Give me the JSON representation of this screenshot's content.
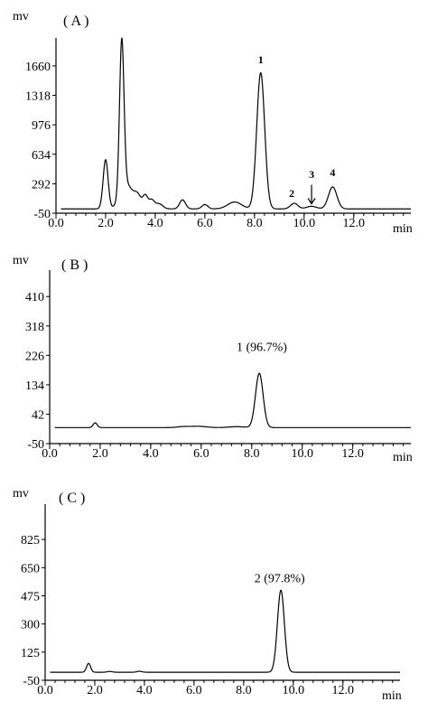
{
  "chart_data": [
    {
      "type": "line",
      "panel_label": "( A )",
      "ylabel": "mv",
      "xlabel": "min",
      "xlim": [
        0,
        14.3
      ],
      "ylim": [
        -50,
        1900
      ],
      "xticks": [
        "0.0",
        "2.0",
        "4.0",
        "6.0",
        "8.0",
        "10.0",
        "12.0"
      ],
      "yticks": [
        "-50",
        "292",
        "634",
        "976",
        "1318",
        "1660"
      ],
      "baseline": 0,
      "peaks": [
        {
          "rt": 2.0,
          "height": 570,
          "width": 0.1
        },
        {
          "rt": 2.65,
          "height": 1780,
          "width": 0.09
        },
        {
          "rt": 2.85,
          "height": 280,
          "width": 0.25
        },
        {
          "rt": 3.3,
          "height": 130,
          "width": 0.14
        },
        {
          "rt": 3.6,
          "height": 145,
          "width": 0.1
        },
        {
          "rt": 3.85,
          "height": 100,
          "width": 0.11
        },
        {
          "rt": 4.15,
          "height": 60,
          "width": 0.15
        },
        {
          "rt": 5.1,
          "height": 105,
          "width": 0.12
        },
        {
          "rt": 6.0,
          "height": 50,
          "width": 0.12
        },
        {
          "rt": 7.2,
          "height": 80,
          "width": 0.28
        },
        {
          "rt": 8.25,
          "height": 1580,
          "width": 0.16
        },
        {
          "rt": 9.6,
          "height": 65,
          "width": 0.15
        },
        {
          "rt": 10.3,
          "height": 30,
          "width": 0.2
        },
        {
          "rt": 11.15,
          "height": 255,
          "width": 0.17
        }
      ],
      "annotations": [
        {
          "text": "1",
          "x": 8.25,
          "y": 1690
        },
        {
          "text": "2",
          "x": 9.5,
          "y": 140
        },
        {
          "text": "3",
          "x": 10.3,
          "y": 360
        },
        {
          "text": "4",
          "x": 11.15,
          "y": 380
        }
      ],
      "arrow": {
        "x": 10.3,
        "y_from": 280,
        "y_to": 60
      }
    },
    {
      "type": "line",
      "panel_label": "( B )",
      "ylabel": "mv",
      "xlabel": "min",
      "xlim": [
        0,
        14.3
      ],
      "ylim": [
        -50,
        470
      ],
      "xticks": [
        "0.0",
        "2.0",
        "4.0",
        "6.0",
        "8.0",
        "10.0",
        "12.0"
      ],
      "yticks": [
        "-50",
        "42",
        "134",
        "226",
        "318",
        "410"
      ],
      "baseline": 0,
      "peaks": [
        {
          "rt": 1.8,
          "height": 15,
          "width": 0.08
        },
        {
          "rt": 5.3,
          "height": 3,
          "width": 0.25
        },
        {
          "rt": 5.9,
          "height": 4,
          "width": 0.3
        },
        {
          "rt": 7.4,
          "height": 3,
          "width": 0.3
        },
        {
          "rt": 8.3,
          "height": 170,
          "width": 0.15
        }
      ],
      "annotations": [
        {
          "text": "1 (96.7%)",
          "x": 8.4,
          "y": 240
        }
      ]
    },
    {
      "type": "line",
      "panel_label": "( C )",
      "ylabel": "mv",
      "xlabel": "min",
      "xlim": [
        0,
        14.3
      ],
      "ylim": [
        -50,
        1000
      ],
      "xticks": [
        "0.0",
        "2.0",
        "4.0",
        "6.0",
        "8.0",
        "10.0",
        "12.0"
      ],
      "yticks": [
        "-50",
        "125",
        "300",
        "475",
        "650",
        "825"
      ],
      "baseline": 0,
      "peaks": [
        {
          "rt": 1.75,
          "height": 55,
          "width": 0.08
        },
        {
          "rt": 2.6,
          "height": 5,
          "width": 0.1
        },
        {
          "rt": 3.8,
          "height": 6,
          "width": 0.1
        },
        {
          "rt": 9.5,
          "height": 510,
          "width": 0.14
        }
      ],
      "annotations": [
        {
          "text": "2 (97.8%)",
          "x": 9.45,
          "y": 560
        }
      ]
    }
  ]
}
